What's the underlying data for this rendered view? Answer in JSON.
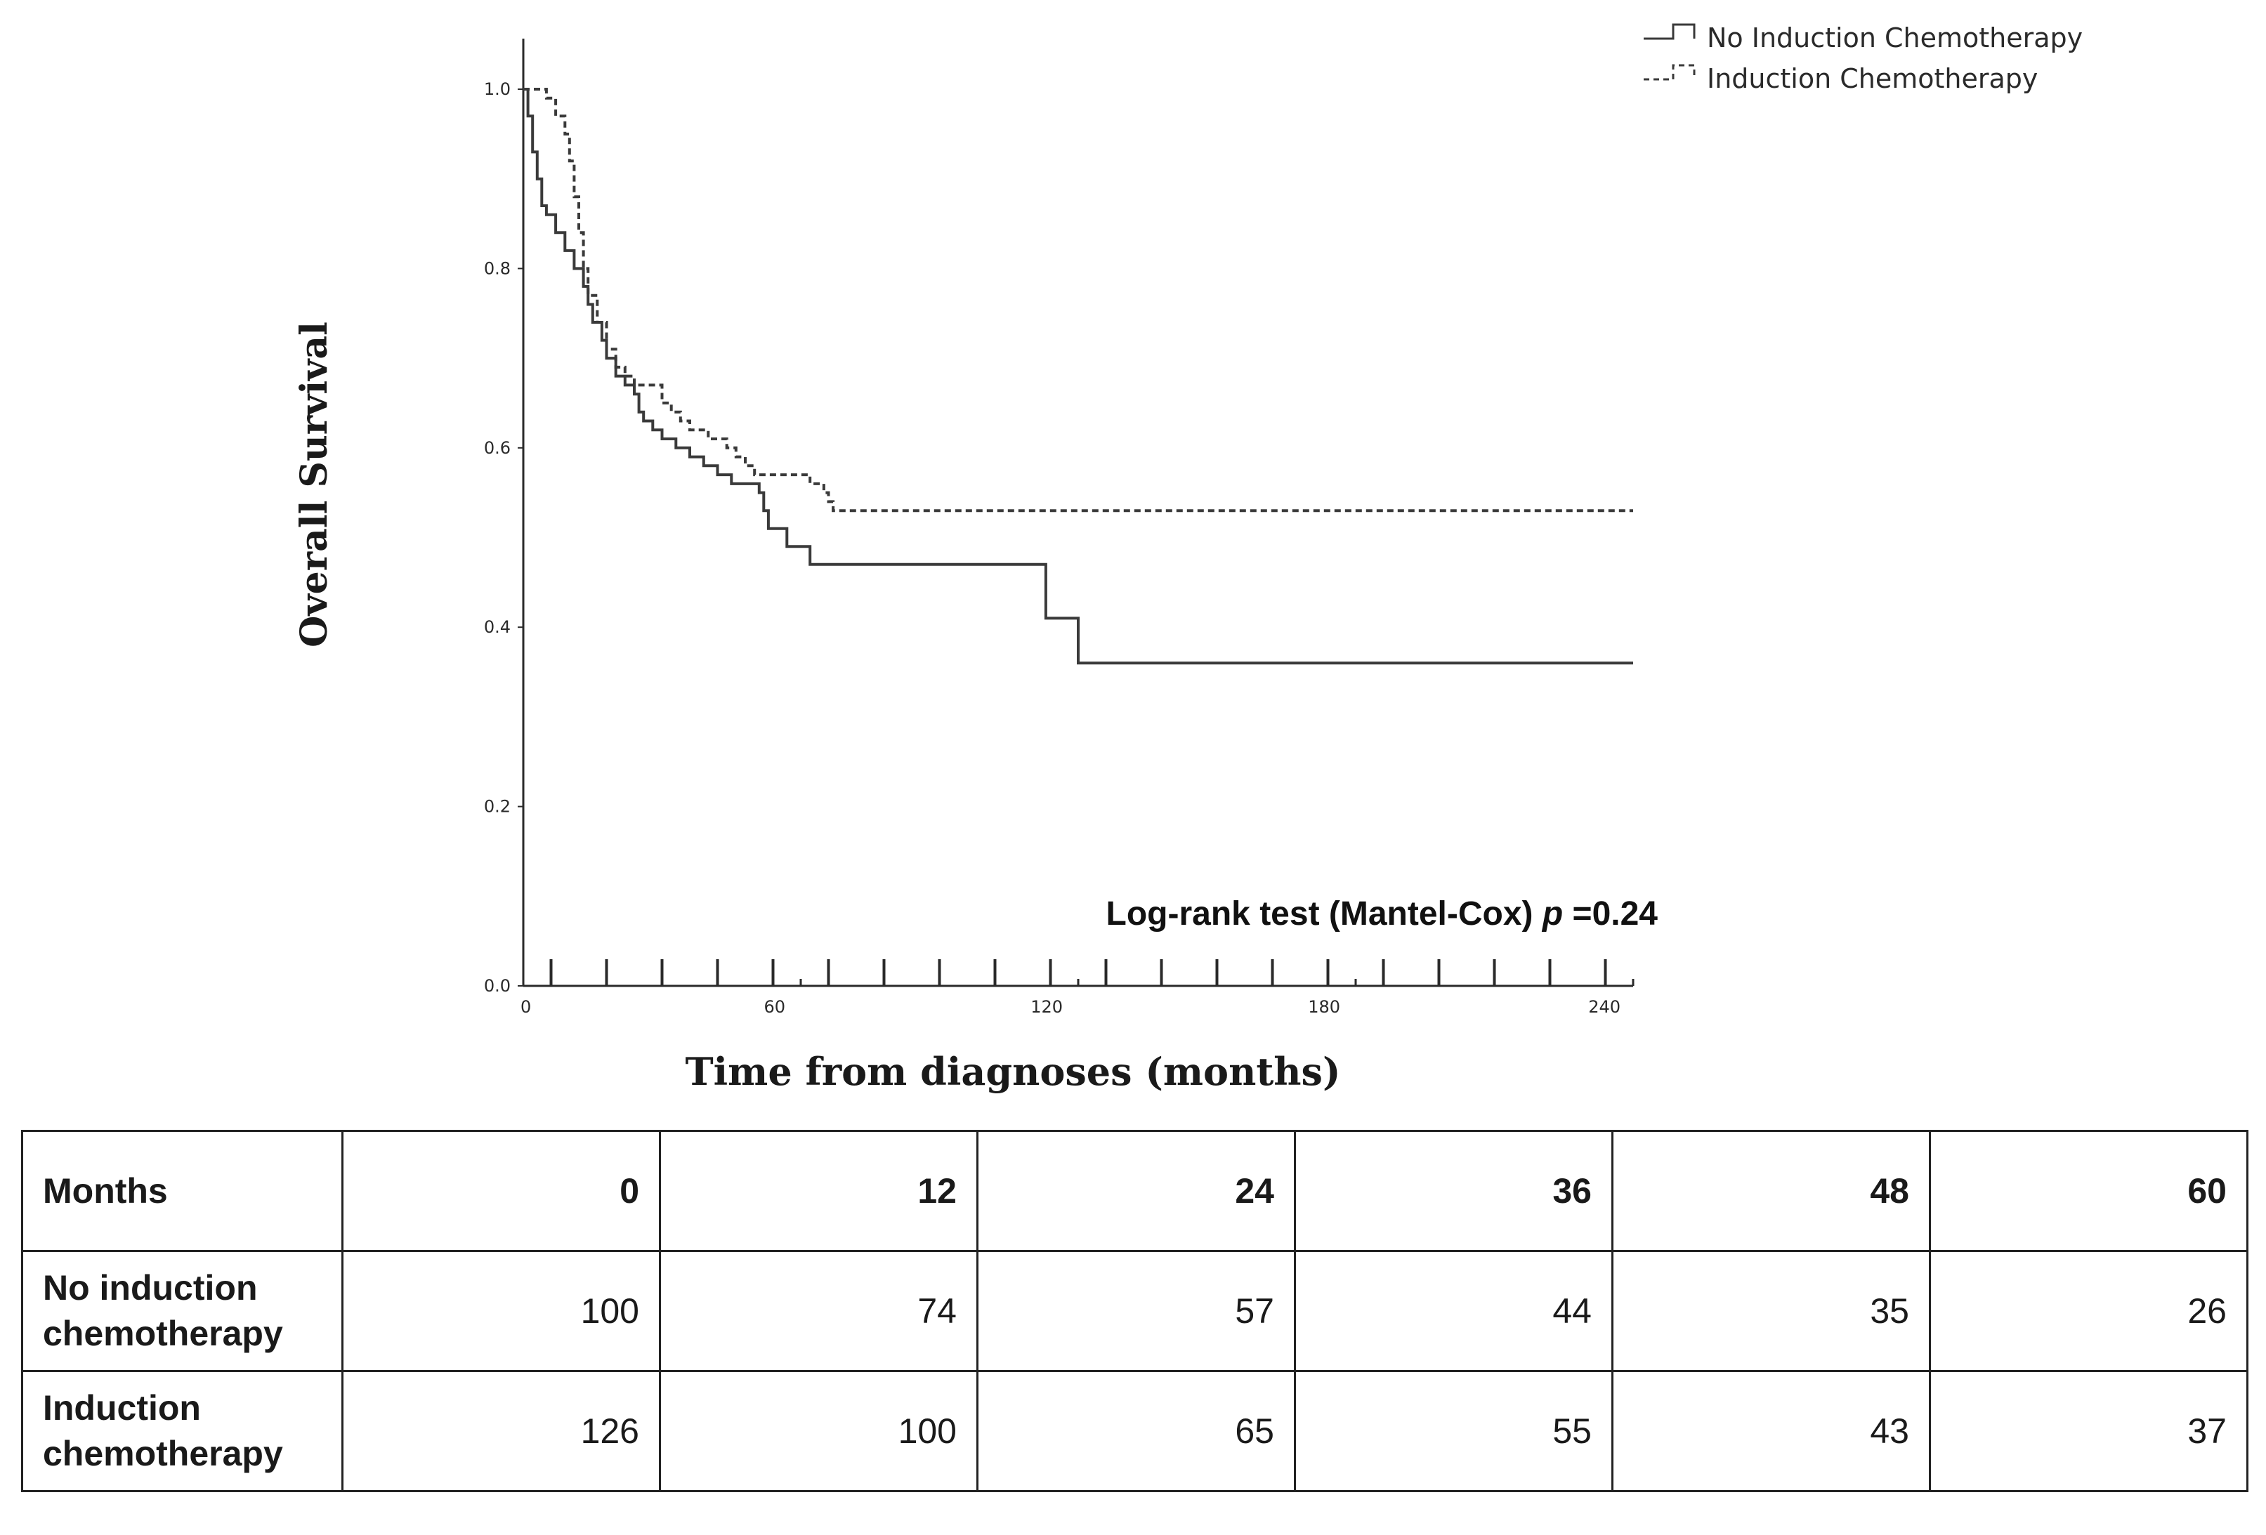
{
  "chart_data": {
    "type": "line",
    "title": "",
    "xlabel": "Time from diagnoses (months)",
    "ylabel": "Overall Survival",
    "xlim": [
      0,
      240
    ],
    "ylim": [
      0,
      1.0
    ],
    "x_tick_labels": [
      "0",
      "60",
      "120",
      "180",
      "240"
    ],
    "x_tick_values": [
      0,
      60,
      120,
      180,
      240
    ],
    "x_minor_ticks": [
      6,
      18,
      30,
      42,
      54,
      66,
      78,
      90,
      102,
      114,
      126,
      138,
      150,
      162,
      174,
      186,
      198,
      210,
      222,
      234
    ],
    "y_tick_labels": [
      "0.0",
      "0.2",
      "0.4",
      "0.6",
      "0.8",
      "1.0"
    ],
    "y_tick_values": [
      0,
      0.2,
      0.4,
      0.6,
      0.8,
      1.0
    ],
    "grid": false,
    "legend_position": "top-right",
    "annotation": {
      "text": "Log-rank test (Mantel-Cox) ",
      "italic": "p",
      "suffix": " =0.24"
    },
    "series": [
      {
        "name": "No Induction Chemotherapy",
        "style": "solid",
        "points": [
          [
            0,
            1.0
          ],
          [
            1,
            0.97
          ],
          [
            2,
            0.93
          ],
          [
            3,
            0.9
          ],
          [
            4,
            0.87
          ],
          [
            5,
            0.86
          ],
          [
            7,
            0.84
          ],
          [
            9,
            0.82
          ],
          [
            11,
            0.8
          ],
          [
            13,
            0.78
          ],
          [
            14,
            0.76
          ],
          [
            15,
            0.74
          ],
          [
            17,
            0.72
          ],
          [
            18,
            0.7
          ],
          [
            20,
            0.68
          ],
          [
            22,
            0.67
          ],
          [
            24,
            0.66
          ],
          [
            25,
            0.64
          ],
          [
            26,
            0.63
          ],
          [
            28,
            0.62
          ],
          [
            30,
            0.61
          ],
          [
            33,
            0.6
          ],
          [
            36,
            0.59
          ],
          [
            39,
            0.58
          ],
          [
            42,
            0.57
          ],
          [
            45,
            0.56
          ],
          [
            51,
            0.55
          ],
          [
            52,
            0.53
          ],
          [
            53,
            0.51
          ],
          [
            57,
            0.49
          ],
          [
            62,
            0.47
          ],
          [
            112,
            0.47
          ],
          [
            113,
            0.41
          ],
          [
            119,
            0.41
          ],
          [
            120,
            0.36
          ],
          [
            240,
            0.36
          ]
        ]
      },
      {
        "name": "Induction Chemotherapy",
        "style": "dashed",
        "points": [
          [
            0,
            1.0
          ],
          [
            5,
            0.99
          ],
          [
            7,
            0.97
          ],
          [
            9,
            0.95
          ],
          [
            10,
            0.92
          ],
          [
            11,
            0.88
          ],
          [
            12,
            0.84
          ],
          [
            13,
            0.8
          ],
          [
            14,
            0.77
          ],
          [
            16,
            0.74
          ],
          [
            18,
            0.71
          ],
          [
            20,
            0.69
          ],
          [
            22,
            0.68
          ],
          [
            24,
            0.67
          ],
          [
            30,
            0.65
          ],
          [
            32,
            0.64
          ],
          [
            34,
            0.63
          ],
          [
            36,
            0.62
          ],
          [
            40,
            0.61
          ],
          [
            44,
            0.6
          ],
          [
            46,
            0.59
          ],
          [
            48,
            0.58
          ],
          [
            50,
            0.57
          ],
          [
            62,
            0.56
          ],
          [
            65,
            0.55
          ],
          [
            66,
            0.54
          ],
          [
            67,
            0.53
          ],
          [
            240,
            0.53
          ]
        ]
      }
    ],
    "colors": {
      "line": "#3a3a3a",
      "axis": "#2a2a2a"
    }
  },
  "risk_table": {
    "header": [
      "Months",
      "0",
      "12",
      "24",
      "36",
      "48",
      "60"
    ],
    "rows": [
      [
        "No induction chemotherapy",
        "100",
        "74",
        "57",
        "44",
        "35",
        "26"
      ],
      [
        "Induction chemotherapy",
        "126",
        "100",
        "65",
        "55",
        "43",
        "37"
      ]
    ]
  }
}
